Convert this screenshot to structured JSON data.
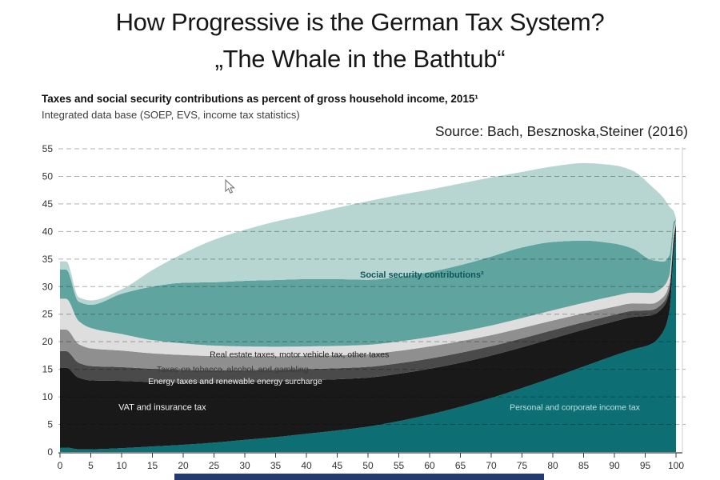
{
  "slide": {
    "title_line1": "How Progressive is the German Tax System?",
    "title_line2": "„The Whale in the Bathtub“"
  },
  "chart_header": {
    "title": "Taxes and social security contributions as percent of gross household income, 2015¹",
    "subtitle": "Integrated data base (SOEP, EVS, income tax statistics)",
    "source": "Source: Bach, Besznoska,Steiner (2016)"
  },
  "chart_data": {
    "type": "area",
    "stacked": true,
    "title": "Taxes and social security contributions as percent of gross household income, 2015",
    "xlabel": "",
    "ylabel": "",
    "xlim": [
      0,
      100
    ],
    "ylim": [
      0,
      55
    ],
    "x_ticks": [
      0,
      5,
      10,
      15,
      20,
      25,
      30,
      35,
      40,
      45,
      50,
      55,
      60,
      65,
      70,
      75,
      80,
      85,
      90,
      95,
      100
    ],
    "y_ticks": [
      0,
      5,
      10,
      15,
      20,
      25,
      30,
      35,
      40,
      45,
      50,
      55
    ],
    "grid": "horizontal-dashed",
    "legend_position": "labels-inside-areas",
    "x": [
      0,
      1,
      3,
      5,
      10,
      15,
      20,
      25,
      30,
      35,
      40,
      45,
      50,
      55,
      60,
      65,
      70,
      75,
      80,
      85,
      90,
      93,
      96,
      98,
      99,
      99.6,
      100
    ],
    "series": [
      {
        "name": "Personal and corporate income tax",
        "color": "#0d6e74",
        "values": [
          0.8,
          0.8,
          0.5,
          0.5,
          0.7,
          1.0,
          1.3,
          1.7,
          2.2,
          2.7,
          3.3,
          3.9,
          4.6,
          5.6,
          6.8,
          8.2,
          9.8,
          11.6,
          13.5,
          15.5,
          17.5,
          18.6,
          19.6,
          22.0,
          26.0,
          36.0,
          40.2
        ]
      },
      {
        "name": "VAT and insurance tax",
        "color": "#191919",
        "values": [
          14.5,
          14.5,
          13.0,
          12.5,
          12.2,
          11.7,
          11.3,
          10.9,
          10.5,
          10.1,
          9.7,
          9.3,
          8.9,
          8.6,
          8.3,
          8.0,
          7.7,
          7.4,
          7.1,
          6.7,
          6.2,
          5.9,
          5.2,
          4.4,
          3.4,
          2.2,
          1.0
        ]
      },
      {
        "name": "Energy taxes and renewable energy surcharge",
        "color": "#4a4a4a",
        "values": [
          3.0,
          3.0,
          2.7,
          2.6,
          2.5,
          2.4,
          2.3,
          2.2,
          2.15,
          2.1,
          2.05,
          2.0,
          1.95,
          1.9,
          1.85,
          1.8,
          1.7,
          1.6,
          1.5,
          1.35,
          1.2,
          1.1,
          0.95,
          0.8,
          0.65,
          0.45,
          0.25
        ]
      },
      {
        "name": "Taxes on tobacco, alcohol, and gambling",
        "color": "#8f8f8f",
        "values": [
          3.9,
          3.9,
          3.4,
          3.2,
          3.0,
          2.8,
          2.7,
          2.6,
          2.5,
          2.45,
          2.4,
          2.35,
          2.3,
          2.25,
          2.2,
          2.1,
          2.0,
          1.9,
          1.75,
          1.6,
          1.45,
          1.35,
          1.15,
          1.0,
          0.85,
          0.6,
          0.25
        ]
      },
      {
        "name": "Real estate taxes, motor vehicle tax, other taxes",
        "color": "#dedede",
        "values": [
          5.6,
          5.6,
          4.2,
          3.7,
          3.0,
          2.4,
          2.1,
          1.9,
          1.8,
          1.75,
          1.7,
          1.7,
          1.7,
          1.7,
          1.7,
          1.7,
          1.75,
          1.8,
          1.85,
          1.9,
          1.95,
          1.95,
          1.95,
          1.85,
          1.5,
          1.0,
          0.4
        ]
      },
      {
        "name": "Social security contributions (lower band)",
        "color": "#60a49f",
        "values": [
          5.3,
          5.3,
          3.5,
          4.2,
          7.3,
          9.7,
          11.0,
          11.5,
          11.9,
          12.1,
          12.2,
          12.1,
          11.8,
          11.7,
          11.8,
          12.1,
          12.5,
          12.8,
          12.4,
          11.3,
          9.5,
          8.0,
          6.0,
          4.5,
          3.5,
          1.5,
          0.1
        ]
      },
      {
        "name": "Social security contributions (upper band)",
        "color": "#b7d5d1",
        "values": [
          1.5,
          1.5,
          0.8,
          0.8,
          0.8,
          3.0,
          5.3,
          7.7,
          9.25,
          10.6,
          11.65,
          12.95,
          14.25,
          14.85,
          14.95,
          14.8,
          14.35,
          13.7,
          13.7,
          14.05,
          14.2,
          14.1,
          13.4,
          11.5,
          8.5,
          2.0,
          0.2
        ]
      }
    ],
    "area_labels": [
      {
        "text": "Social security contributions²",
        "x_pct": 48.7,
        "y_val": 31.6,
        "color": "#0d565a",
        "bold": true
      },
      {
        "text": "Real estate taxes, motor vehicle tax, other taxes",
        "x_pct": 24.3,
        "y_val": 17.2,
        "color": "#1f1f1f",
        "bold": false
      },
      {
        "text": "Taxes on tobacco, alcohol, and gambling",
        "x_pct": 15.7,
        "y_val": 14.5,
        "color": "#3a3a3a",
        "bold": false
      },
      {
        "text": "Energy taxes and renewable energy surcharge",
        "x_pct": 14.3,
        "y_val": 12.3,
        "color": "#ececec",
        "bold": false
      },
      {
        "text": "VAT and insurance tax",
        "x_pct": 9.5,
        "y_val": 7.6,
        "color": "#f2f2f2",
        "bold": false
      },
      {
        "text": "Personal and corporate income tax",
        "x_pct": 73.0,
        "y_val": 7.6,
        "color": "#bfe2df",
        "bold": false
      }
    ]
  },
  "colors": {
    "gridline": "#b0b0b0",
    "axis": "#3c3c3c",
    "tick_label": "#333333",
    "footer_bar": "#253a6e"
  }
}
